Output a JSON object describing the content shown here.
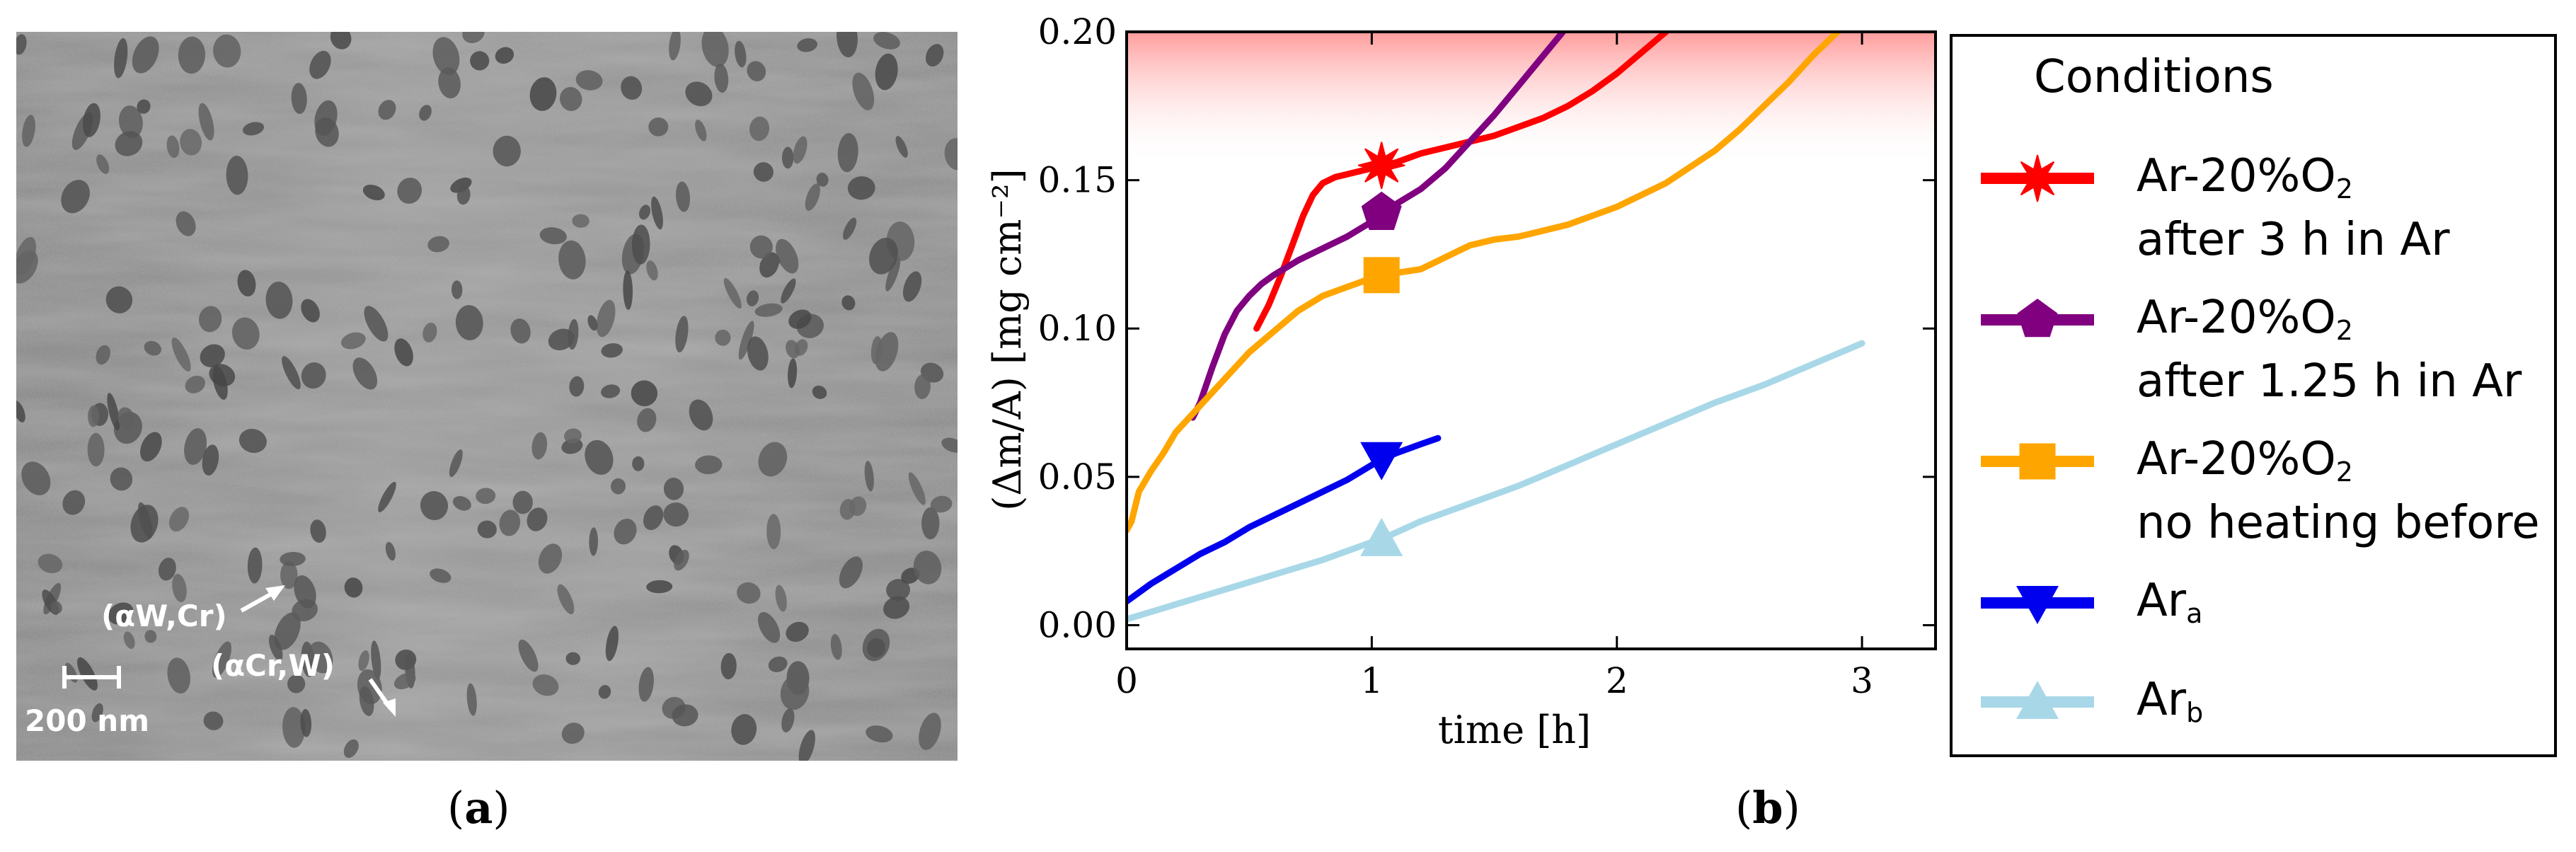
{
  "panel_a": {
    "tag_open": "(",
    "tag_letter": "a",
    "tag_close": ")",
    "label_w": "(αW,Cr)",
    "label_cr": "(αCr,W)",
    "scale_bar": "200 nm"
  },
  "panel_b": {
    "tag_open": "(",
    "tag_letter": "b",
    "tag_close": ")"
  },
  "chart_data": {
    "type": "line",
    "xlabel": "time [h]",
    "ylabel": "(Δm/A) [mg cm⁻²]",
    "xlim": [
      0,
      3.3
    ],
    "ylim": [
      -0.008,
      0.2
    ],
    "xticks": [
      "0",
      "1",
      "2",
      "3"
    ],
    "yticks": [
      "0.00",
      "0.05",
      "0.10",
      "0.15",
      "0.20"
    ],
    "shaded_region": {
      "from": 0.155,
      "to": 0.2,
      "color": "#ff8a8a"
    },
    "legend": {
      "title": "Conditions",
      "position": "right"
    },
    "series": [
      {
        "name": "Ar-20%O2 after 3 h in Ar",
        "line1": "Ar-20%O",
        "sub": "2",
        "line2": "after 3 h in Ar",
        "color": "#ff0000",
        "marker": "star",
        "marker_at": [
          1.04,
          0.155
        ],
        "x": [
          0.53,
          0.58,
          0.63,
          0.68,
          0.72,
          0.76,
          0.8,
          0.85,
          0.9,
          0.95,
          1.0,
          1.04,
          1.1,
          1.2,
          1.3,
          1.4,
          1.5,
          1.6,
          1.7,
          1.8,
          1.9,
          2.0,
          2.1,
          2.2
        ],
        "y": [
          0.1,
          0.108,
          0.118,
          0.129,
          0.138,
          0.145,
          0.149,
          0.151,
          0.152,
          0.153,
          0.154,
          0.155,
          0.156,
          0.159,
          0.161,
          0.163,
          0.165,
          0.168,
          0.171,
          0.175,
          0.18,
          0.186,
          0.193,
          0.2
        ]
      },
      {
        "name": "Ar-20%O2 after 1.25 h in Ar",
        "line1": "Ar-20%O",
        "sub": "2",
        "line2": "after 1.25 h in Ar",
        "color": "#800080",
        "marker": "pentagon",
        "marker_at": [
          1.04,
          0.139
        ],
        "x": [
          0.27,
          0.3,
          0.35,
          0.4,
          0.45,
          0.5,
          0.55,
          0.6,
          0.7,
          0.8,
          0.9,
          1.0,
          1.04,
          1.1,
          1.2,
          1.3,
          1.4,
          1.5,
          1.6,
          1.7,
          1.78
        ],
        "y": [
          0.07,
          0.075,
          0.087,
          0.098,
          0.106,
          0.111,
          0.115,
          0.118,
          0.123,
          0.127,
          0.131,
          0.136,
          0.139,
          0.142,
          0.147,
          0.154,
          0.163,
          0.172,
          0.182,
          0.192,
          0.2
        ]
      },
      {
        "name": "Ar-20%O2 no heating before",
        "line1": "Ar-20%O",
        "sub": "2",
        "line2": "no heating before",
        "color": "#ffa500",
        "marker": "square",
        "marker_at": [
          1.04,
          0.118
        ],
        "x": [
          0.0,
          0.02,
          0.05,
          0.1,
          0.15,
          0.2,
          0.3,
          0.4,
          0.5,
          0.6,
          0.7,
          0.8,
          0.9,
          1.0,
          1.04,
          1.2,
          1.3,
          1.4,
          1.5,
          1.6,
          1.8,
          2.0,
          2.2,
          2.4,
          2.5,
          2.6,
          2.7,
          2.8,
          2.9
        ],
        "y": [
          0.032,
          0.035,
          0.045,
          0.052,
          0.058,
          0.065,
          0.074,
          0.083,
          0.092,
          0.099,
          0.106,
          0.111,
          0.114,
          0.117,
          0.118,
          0.12,
          0.124,
          0.128,
          0.13,
          0.131,
          0.135,
          0.141,
          0.149,
          0.16,
          0.167,
          0.175,
          0.183,
          0.192,
          0.2
        ]
      },
      {
        "name": "Ar_a",
        "line1": "Ar",
        "sub": "a",
        "line2": "",
        "color": "#0000ee",
        "marker": "triangle-down",
        "marker_at": [
          1.04,
          0.056
        ],
        "x": [
          0.0,
          0.1,
          0.2,
          0.3,
          0.4,
          0.5,
          0.6,
          0.7,
          0.8,
          0.9,
          1.0,
          1.04,
          1.1,
          1.2,
          1.27
        ],
        "y": [
          0.008,
          0.014,
          0.019,
          0.024,
          0.028,
          0.033,
          0.037,
          0.041,
          0.045,
          0.049,
          0.054,
          0.056,
          0.058,
          0.061,
          0.063
        ]
      },
      {
        "name": "Ar_b",
        "line1": "Ar",
        "sub": "b",
        "line2": "",
        "color": "#a8d8e8",
        "marker": "triangle-up",
        "marker_at": [
          1.04,
          0.029
        ],
        "x": [
          0.0,
          0.2,
          0.4,
          0.6,
          0.8,
          1.0,
          1.04,
          1.2,
          1.4,
          1.6,
          1.8,
          2.0,
          2.2,
          2.4,
          2.6,
          2.8,
          3.0
        ],
        "y": [
          0.002,
          0.007,
          0.012,
          0.017,
          0.022,
          0.028,
          0.029,
          0.035,
          0.041,
          0.047,
          0.054,
          0.061,
          0.068,
          0.075,
          0.081,
          0.088,
          0.095
        ]
      }
    ]
  }
}
